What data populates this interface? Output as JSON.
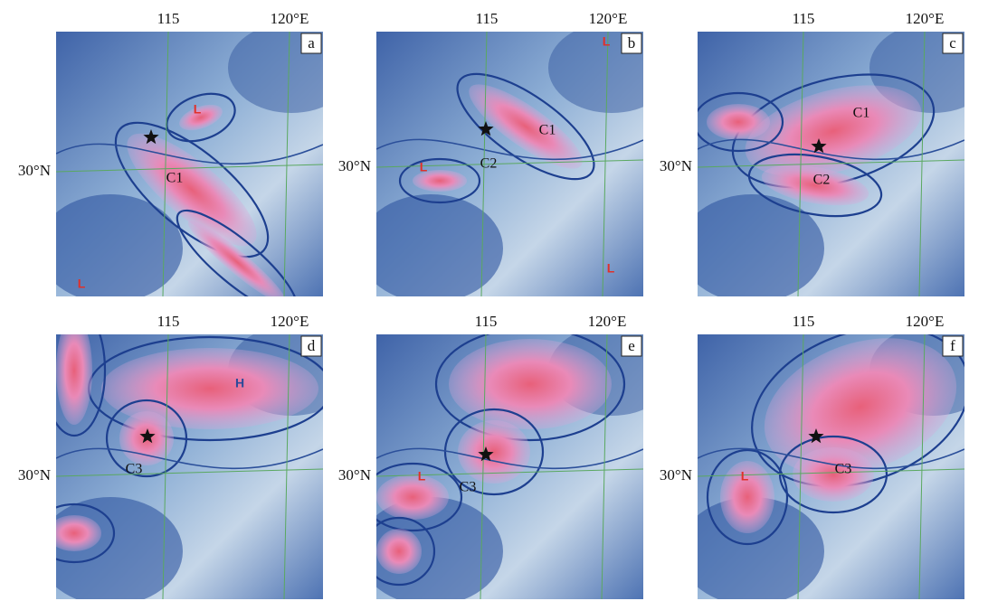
{
  "panels": [
    {
      "letter": "a",
      "lon_labels": [
        "115",
        "120°E"
      ],
      "lat_label": "30°N",
      "clusters": [
        "C1"
      ],
      "markers": [
        "L",
        "L"
      ]
    },
    {
      "letter": "b",
      "lon_labels": [
        "115",
        "120°E"
      ],
      "lat_label": "30°N",
      "clusters": [
        "C1",
        "C2"
      ],
      "markers": [
        "L",
        "L",
        "L"
      ]
    },
    {
      "letter": "c",
      "lon_labels": [
        "115",
        "120°E"
      ],
      "lat_label": "30°N",
      "clusters": [
        "C1",
        "C2"
      ],
      "markers": []
    },
    {
      "letter": "d",
      "lon_labels": [
        "115",
        "120°E"
      ],
      "lat_label": "30°N",
      "clusters": [
        "C3"
      ],
      "markers": [
        "H"
      ]
    },
    {
      "letter": "e",
      "lon_labels": [
        "115",
        "120°E"
      ],
      "lat_label": "30°N",
      "clusters": [
        "C3"
      ],
      "markers": [
        "L"
      ]
    },
    {
      "letter": "f",
      "lon_labels": [
        "115",
        "120°E"
      ],
      "lat_label": "30°N",
      "clusters": [
        "C3"
      ],
      "markers": [
        "L"
      ]
    }
  ]
}
